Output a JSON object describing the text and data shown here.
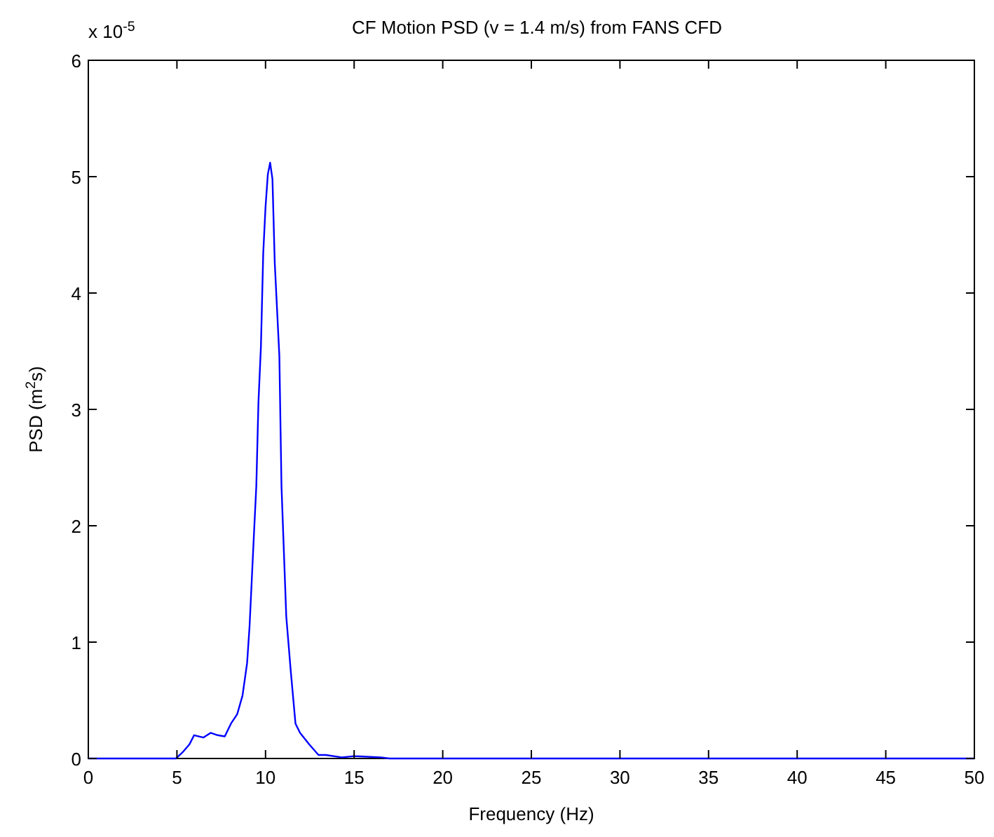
{
  "chart_data": {
    "type": "line",
    "title": "CF Motion PSD (v = 1.4 m/s) from FANS CFD",
    "xlabel": "Frequency (Hz)",
    "ylabel": "PSD (m$^{2}$s)",
    "annotations": [
      "x 10$^{-5}$"
    ],
    "x": [
      0,
      4.94,
      5.3,
      5.7,
      5.97,
      6.5,
      6.9,
      7.3,
      7.7,
      8.05,
      8.4,
      8.7,
      8.96,
      9.1,
      9.35,
      9.48,
      9.6,
      9.74,
      9.87,
      10.0,
      10.13,
      10.26,
      10.39,
      10.52,
      10.78,
      10.9,
      11.17,
      11.43,
      11.69,
      11.95,
      12.47,
      12.99,
      13.4,
      14.3,
      15.0,
      16.5,
      17,
      50
    ],
    "series": [
      {
        "color": "#0000ff",
        "values": [
          0,
          0,
          0.05,
          0.12,
          0.2,
          0.18,
          0.22,
          0.2,
          0.19,
          0.3,
          0.38,
          0.54,
          0.82,
          1.14,
          1.94,
          2.34,
          3.06,
          3.54,
          4.34,
          4.74,
          5.02,
          5.12,
          4.98,
          4.26,
          3.46,
          2.34,
          1.22,
          0.74,
          0.3,
          0.22,
          0.12,
          0.03,
          0.03,
          0.01,
          0.02,
          0.01,
          0,
          0
        ]
      }
    ],
    "xlim": [
      0,
      50
    ],
    "xticks": [
      0,
      5,
      10,
      15,
      20,
      25,
      30,
      35,
      40,
      45,
      50
    ],
    "ylim": [
      0,
      6
    ],
    "yticks": [
      0,
      1,
      2,
      3,
      4,
      5,
      6
    ],
    "grid": false,
    "marker": "none",
    "line_style": "solid"
  }
}
